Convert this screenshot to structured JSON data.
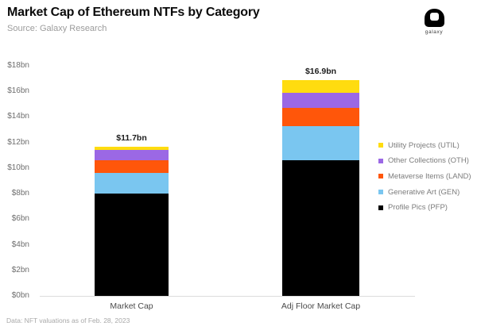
{
  "header": {
    "title": "Market Cap of Ethereum NTFs by Category",
    "subtitle": "Source: Galaxy Research",
    "logo_text": "galaxy"
  },
  "footnote": "Data: NFT valuations as of Feb. 28, 2023",
  "chart_data": {
    "type": "bar",
    "stacked": true,
    "title": "Market Cap of Ethereum NTFs by Category",
    "subtitle": "Source: Galaxy Research",
    "categories": [
      "Market Cap",
      "Adj Floor Market Cap"
    ],
    "totals": [
      11.7,
      16.9
    ],
    "total_labels": [
      "$11.7bn",
      "$16.9bn"
    ],
    "unit": "USD billions",
    "ylim": [
      0,
      18
    ],
    "grid": false,
    "legend_position": "right",
    "yticks": [
      {
        "value": 0,
        "label": "$0bn"
      },
      {
        "value": 2,
        "label": "$2bn"
      },
      {
        "value": 4,
        "label": "$4bn"
      },
      {
        "value": 6,
        "label": "$6bn"
      },
      {
        "value": 8,
        "label": "$8bn"
      },
      {
        "value": 10,
        "label": "$10bn"
      },
      {
        "value": 12,
        "label": "$12bn"
      },
      {
        "value": 14,
        "label": "$14bn"
      },
      {
        "value": 16,
        "label": "$16bn"
      },
      {
        "value": 18,
        "label": "$18bn"
      }
    ],
    "series": [
      {
        "name": "Utility Projects (UTIL)",
        "color": "#FFDC0F",
        "values": [
          0.3,
          1.0
        ]
      },
      {
        "name": "Other Collections (OTH)",
        "color": "#9B68E5",
        "values": [
          0.8,
          1.2
        ]
      },
      {
        "name": "Metaverse Items (LAND)",
        "color": "#FF560A",
        "values": [
          1.0,
          1.4
        ]
      },
      {
        "name": "Generative Art (GEN)",
        "color": "#7AC6F0",
        "values": [
          1.6,
          2.7
        ]
      },
      {
        "name": "Profile Pics (PFP)",
        "color": "#000000",
        "values": [
          8.0,
          10.6
        ]
      }
    ]
  }
}
